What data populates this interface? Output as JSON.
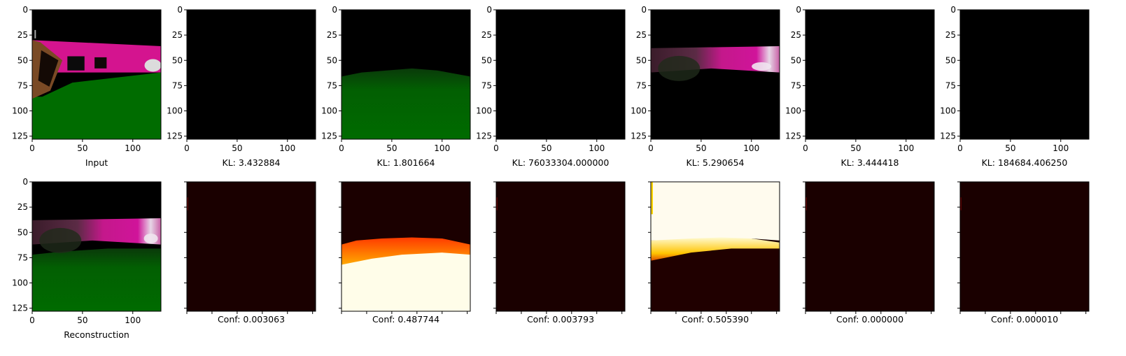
{
  "figure": {
    "axes": {
      "x_ticks": [
        "0",
        "50",
        "100"
      ],
      "x_tick_values": [
        0,
        50,
        100
      ],
      "y_ticks": [
        "0",
        "25",
        "50",
        "75",
        "100",
        "125"
      ],
      "y_tick_values": [
        0,
        25,
        50,
        75,
        100,
        125
      ],
      "extent": [
        0,
        128
      ]
    },
    "panels_top": [
      {
        "id": "input",
        "caption": "Input",
        "kind": "scene"
      },
      {
        "id": "top-1",
        "caption": "KL: 3.432884",
        "kind": "black"
      },
      {
        "id": "top-2",
        "caption": "KL: 1.801664",
        "kind": "green-recon"
      },
      {
        "id": "top-3",
        "caption": "KL: 76033304.000000",
        "kind": "black"
      },
      {
        "id": "top-4",
        "caption": "KL: 5.290654",
        "kind": "pink-recon"
      },
      {
        "id": "top-5",
        "caption": "KL: 3.444418",
        "kind": "black"
      },
      {
        "id": "top-6",
        "caption": "KL: 184684.406250",
        "kind": "black"
      }
    ],
    "panels_bottom": [
      {
        "id": "recon",
        "caption": "Reconstruction",
        "kind": "full-recon"
      },
      {
        "id": "bot-1",
        "caption": "Conf: 0.003063",
        "kind": "conf-dark"
      },
      {
        "id": "bot-2",
        "caption": "Conf: 0.487744",
        "kind": "conf-ground"
      },
      {
        "id": "bot-3",
        "caption": "Conf: 0.003793",
        "kind": "conf-dark"
      },
      {
        "id": "bot-4",
        "caption": "Conf: 0.505390",
        "kind": "conf-sky"
      },
      {
        "id": "bot-5",
        "caption": "Conf: 0.000000",
        "kind": "conf-dark"
      },
      {
        "id": "bot-6",
        "caption": "Conf: 0.000010",
        "kind": "conf-dark"
      }
    ]
  },
  "chart_data": {
    "type": "heatmap",
    "layout": "2 rows x 7 image panels",
    "x_range": [
      0,
      128
    ],
    "y_range": [
      0,
      128
    ],
    "x_ticks": [
      0,
      50,
      100
    ],
    "y_ticks": [
      0,
      25,
      50,
      75,
      100,
      125
    ],
    "kl_values": [
      3.432884,
      1.801664,
      76033304.0,
      5.290654,
      3.444418,
      184684.40625
    ],
    "conf_values": [
      0.003063,
      0.487744,
      0.003793,
      0.50539,
      0.0,
      1e-05
    ],
    "colors": {
      "black": "#000000",
      "ground_green": "#006400",
      "wall_pink": "#d4148f",
      "heat_dark": "#1a0000"
    }
  }
}
